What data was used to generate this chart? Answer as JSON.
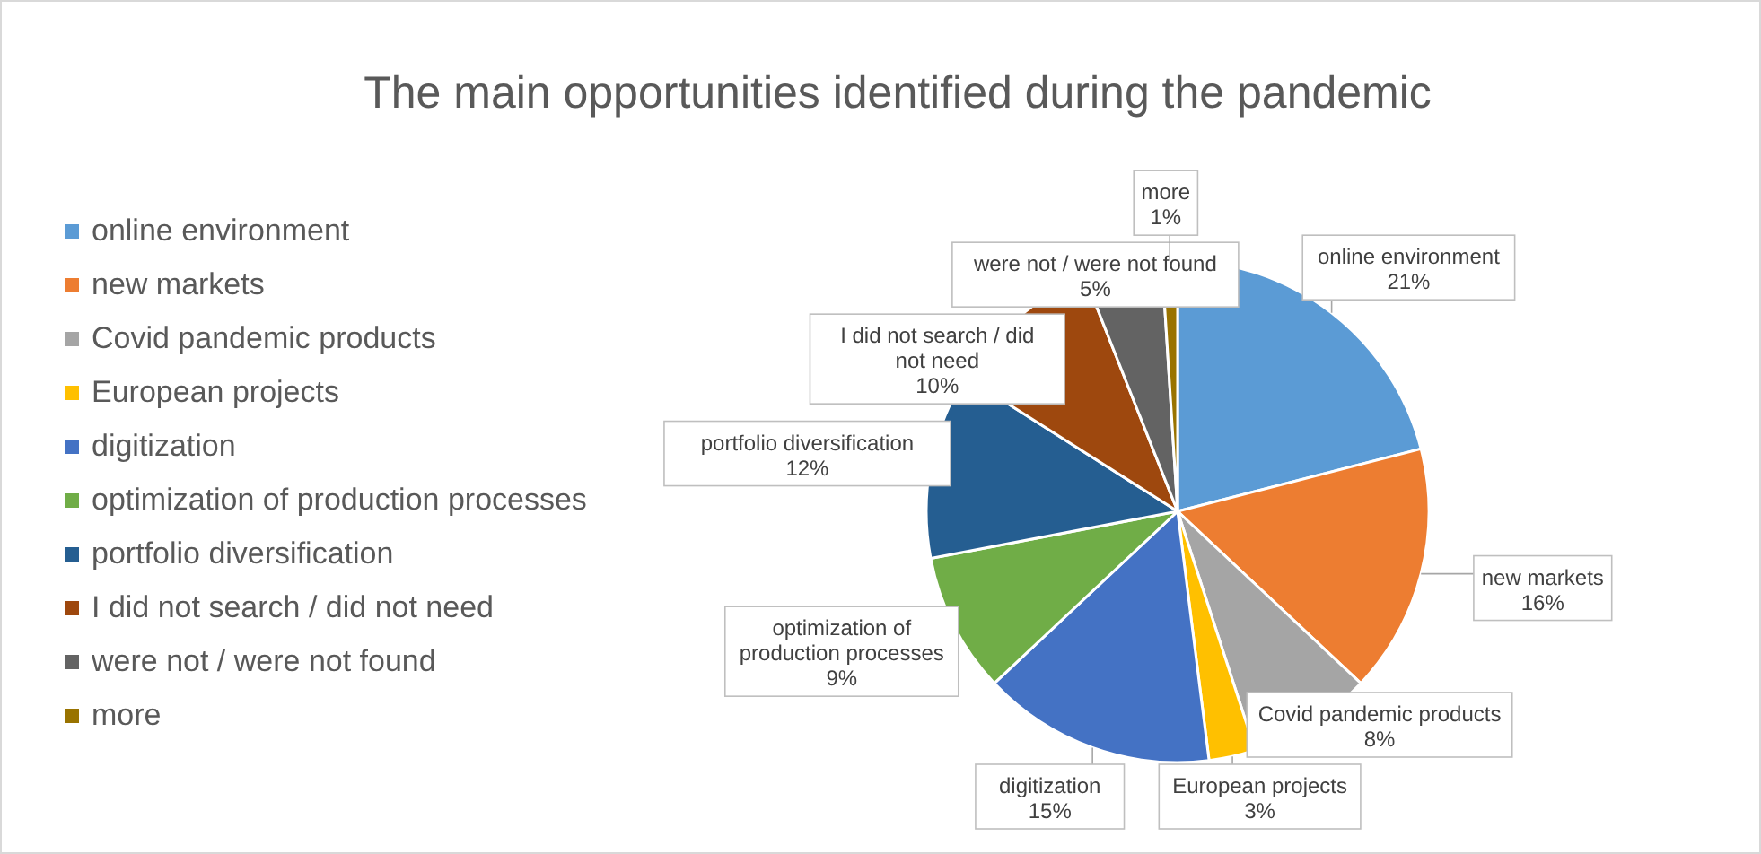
{
  "chart_data": {
    "type": "pie",
    "title": "The main opportunities identified during the pandemic",
    "categories": [
      "online environment",
      "new markets",
      "Covid pandemic products",
      "European projects",
      "digitization",
      "optimization of production processes",
      "portfolio diversification",
      "I did not search / did not need",
      "were not / were not found",
      "more"
    ],
    "values": [
      21,
      16,
      8,
      3,
      15,
      9,
      12,
      10,
      5,
      1
    ],
    "colors": [
      "#5b9bd5",
      "#ed7d31",
      "#a5a5a5",
      "#ffc000",
      "#4472c4",
      "#70ad47",
      "#255e91",
      "#9e480e",
      "#636363",
      "#997300"
    ],
    "value_labels": [
      "21%",
      "16%",
      "8%",
      "3%",
      "15%",
      "9%",
      "12%",
      "10%",
      "5%",
      "1%"
    ],
    "legend": "left"
  }
}
